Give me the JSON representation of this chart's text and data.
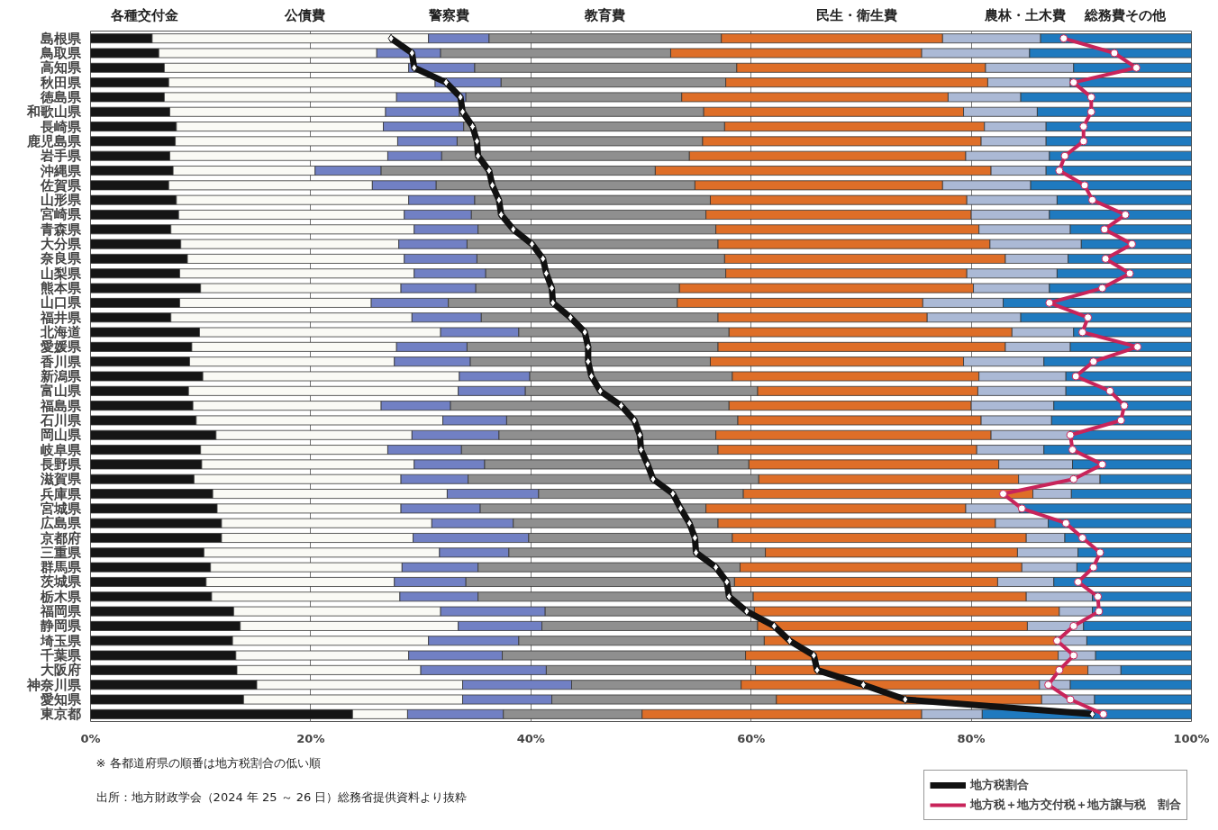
{
  "chart_data": {
    "type": "bar",
    "orientation": "horizontal",
    "stacked": true,
    "categories": [
      "島根県",
      "鳥取県",
      "高知県",
      "秋田県",
      "徳島県",
      "和歌山県",
      "長崎県",
      "鹿児島県",
      "岩手県",
      "沖縄県",
      "佐賀県",
      "山形県",
      "宮崎県",
      "青森県",
      "大分県",
      "奈良県",
      "山梨県",
      "熊本県",
      "山口県",
      "福井県",
      "北海道",
      "愛媛県",
      "香川県",
      "新潟県",
      "富山県",
      "福島県",
      "石川県",
      "岡山県",
      "岐阜県",
      "長野県",
      "滋賀県",
      "兵庫県",
      "宮城県",
      "広島県",
      "京都府",
      "三重県",
      "群馬県",
      "茨城県",
      "栃木県",
      "福岡県",
      "静岡県",
      "埼玉県",
      "千葉県",
      "大阪府",
      "神奈川県",
      "愛知県",
      "東京都"
    ],
    "series": [
      {
        "name": "各種交付金",
        "color": "#151515",
        "values": [
          5.6,
          6.2,
          6.7,
          7.1,
          6.7,
          7.2,
          7.8,
          7.7,
          7.2,
          7.5,
          7.1,
          7.8,
          8.0,
          7.3,
          8.2,
          8.8,
          8.1,
          10.0,
          8.1,
          7.3,
          9.9,
          9.2,
          9.0,
          10.2,
          8.9,
          9.3,
          9.6,
          11.4,
          10.0,
          10.1,
          9.4,
          11.1,
          11.5,
          11.9,
          11.9,
          10.3,
          10.9,
          10.5,
          11.0,
          13.0,
          13.6,
          12.9,
          13.2,
          13.3,
          15.1,
          13.9,
          23.8
        ]
      },
      {
        "name": "公債費",
        "color": "#fafaf5",
        "values": [
          25.1,
          19.8,
          22.2,
          24.2,
          21.1,
          19.6,
          18.8,
          20.2,
          19.8,
          12.9,
          18.5,
          21.1,
          20.5,
          22.1,
          19.8,
          19.7,
          21.3,
          18.2,
          17.4,
          21.9,
          21.9,
          18.6,
          18.6,
          23.3,
          24.5,
          17.1,
          22.4,
          17.8,
          17.0,
          19.3,
          18.8,
          21.3,
          16.7,
          19.1,
          17.4,
          21.4,
          17.4,
          17.1,
          17.1,
          18.8,
          19.8,
          17.8,
          15.7,
          16.7,
          18.7,
          19.9,
          5.0
        ]
      },
      {
        "name": "警察費",
        "color": "#7180c4",
        "values": [
          5.5,
          5.8,
          6.0,
          6.0,
          6.3,
          6.7,
          7.3,
          5.4,
          4.9,
          6.0,
          5.8,
          6.0,
          6.1,
          5.8,
          6.2,
          6.6,
          6.5,
          6.8,
          7.0,
          6.3,
          7.1,
          6.4,
          6.9,
          6.4,
          6.1,
          6.3,
          5.8,
          7.9,
          6.7,
          6.4,
          6.1,
          8.3,
          7.2,
          7.4,
          10.5,
          6.3,
          6.9,
          6.5,
          7.1,
          9.5,
          7.6,
          8.2,
          8.5,
          11.4,
          9.9,
          8.1,
          8.7
        ]
      },
      {
        "name": "教育費",
        "color": "#8f8f8f",
        "values": [
          21.1,
          20.9,
          23.8,
          20.4,
          19.6,
          22.2,
          23.7,
          22.3,
          22.5,
          24.9,
          23.5,
          21.4,
          21.3,
          21.6,
          22.8,
          22.5,
          21.8,
          18.5,
          20.8,
          21.5,
          19.1,
          22.8,
          21.8,
          18.4,
          21.1,
          25.3,
          21.0,
          19.7,
          23.3,
          24.0,
          26.4,
          18.6,
          20.5,
          18.6,
          18.5,
          23.3,
          23.8,
          24.4,
          25.0,
          19.0,
          19.6,
          22.3,
          22.1,
          19.0,
          15.4,
          20.4,
          12.6
        ]
      },
      {
        "name": "民生・衛生費",
        "color": "#de6e28",
        "values": [
          20.1,
          22.8,
          22.6,
          23.8,
          24.2,
          23.6,
          23.6,
          25.3,
          25.1,
          30.5,
          22.5,
          23.3,
          24.1,
          23.9,
          24.7,
          25.5,
          21.9,
          26.7,
          22.3,
          19.0,
          25.7,
          26.1,
          23.0,
          22.4,
          20.0,
          22.0,
          22.1,
          25.0,
          23.5,
          22.7,
          23.6,
          26.3,
          23.6,
          25.2,
          26.7,
          22.9,
          25.6,
          23.9,
          24.8,
          27.7,
          24.5,
          26.5,
          28.4,
          30.2,
          27.1,
          24.1,
          25.4
        ]
      },
      {
        "name": "農林・土木費",
        "color": "#abb9d5",
        "values": [
          8.9,
          9.8,
          8.0,
          7.5,
          6.6,
          6.7,
          5.6,
          5.9,
          7.6,
          5.0,
          8.0,
          8.2,
          7.1,
          8.3,
          8.3,
          5.7,
          8.2,
          6.9,
          7.3,
          8.5,
          5.6,
          5.9,
          7.3,
          7.9,
          8.0,
          7.5,
          6.4,
          7.2,
          6.1,
          6.7,
          7.4,
          3.5,
          4.9,
          4.8,
          3.5,
          5.5,
          5.0,
          5.1,
          6.0,
          3.0,
          5.1,
          2.8,
          3.4,
          3.0,
          2.8,
          4.8,
          5.5
        ]
      },
      {
        "name": "総務費その他",
        "color": "#1f7abf",
        "values": [
          13.7,
          14.7,
          10.7,
          11.0,
          15.5,
          14.0,
          13.2,
          13.2,
          12.9,
          13.2,
          14.6,
          12.2,
          12.9,
          11.0,
          10.0,
          11.2,
          12.2,
          12.9,
          17.1,
          15.5,
          10.7,
          11.0,
          13.4,
          11.4,
          11.4,
          12.5,
          12.7,
          11.0,
          13.4,
          10.8,
          8.3,
          10.9,
          15.6,
          13.0,
          11.5,
          10.3,
          10.4,
          12.5,
          9.0,
          9.0,
          9.8,
          9.5,
          8.7,
          6.4,
          11.0,
          8.8,
          19.0
        ]
      },
      {
        "name": "地方税割合",
        "type": "line",
        "color": "#111111",
        "marker": "diamond",
        "values": [
          27.3,
          29.2,
          29.4,
          32.3,
          33.6,
          33.8,
          34.7,
          35.1,
          35.2,
          36.2,
          36.5,
          37.1,
          37.3,
          38.4,
          40.1,
          41.1,
          41.4,
          41.9,
          42.0,
          43.6,
          44.9,
          45.2,
          45.2,
          45.5,
          46.3,
          48.2,
          49.4,
          49.9,
          50.0,
          50.6,
          51.1,
          52.9,
          53.6,
          54.4,
          54.9,
          55.0,
          56.8,
          57.8,
          58.0,
          59.6,
          62.1,
          63.5,
          65.7,
          66.0,
          70.2,
          74.0,
          91.0
        ]
      },
      {
        "name": "地方税＋地方交付税＋地方譲与税　割合",
        "type": "line",
        "color": "#c8245a",
        "marker": "circle",
        "values": [
          88.4,
          93.0,
          95.0,
          89.3,
          90.9,
          90.9,
          90.2,
          90.2,
          88.5,
          88.0,
          90.3,
          91.0,
          94.0,
          92.1,
          94.6,
          92.2,
          94.4,
          91.9,
          87.1,
          90.6,
          90.1,
          95.1,
          91.1,
          89.5,
          92.6,
          93.9,
          93.6,
          89.0,
          89.2,
          91.9,
          89.3,
          82.9,
          84.6,
          88.6,
          90.1,
          91.7,
          91.1,
          89.7,
          91.5,
          91.6,
          89.3,
          87.8,
          89.3,
          88.0,
          87.0,
          89.0,
          92.0
        ]
      }
    ],
    "xlim": [
      0,
      100
    ],
    "xticks": [
      {
        "value": 0,
        "label": "0%"
      },
      {
        "value": 20,
        "label": "20%"
      },
      {
        "value": 40,
        "label": "40%"
      },
      {
        "value": 60,
        "label": "60%"
      },
      {
        "value": 80,
        "label": "80%"
      },
      {
        "value": 100,
        "label": "100%"
      }
    ],
    "grid": "x",
    "legend": "bottom right",
    "annotations": [
      "※ 各都道府県の順番は地方税割合の低い順",
      "出所：地方財政学会（2024 年 25 ～ 26 日）総務省提供資料より抜粋"
    ]
  }
}
